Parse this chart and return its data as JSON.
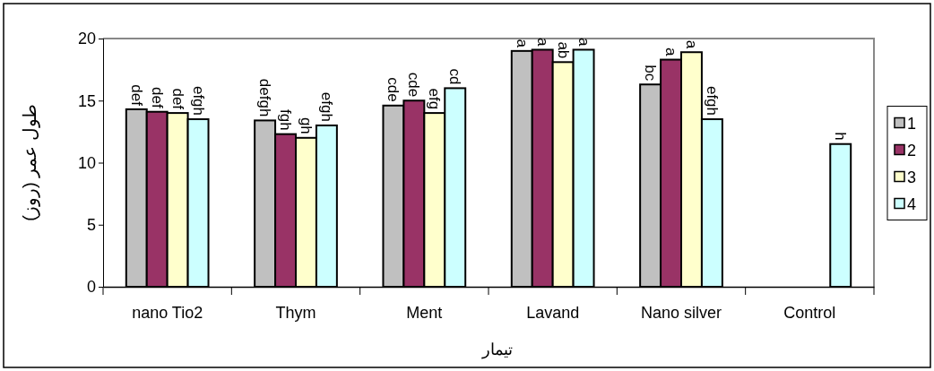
{
  "chart_data": {
    "type": "bar",
    "xlabel": "تيمار",
    "ylabel": "طول عمر (روز)",
    "categories": [
      "nano Tio2",
      "Thym",
      "Ment",
      "Lavand",
      "Nano silver",
      "Control"
    ],
    "series": [
      {
        "name": "1",
        "color": "#c0c0c0",
        "values": [
          14.3,
          13.4,
          14.6,
          19.0,
          16.3,
          null
        ],
        "value_labels": [
          "def",
          "defgh",
          "cde",
          "a",
          "bc",
          null
        ]
      },
      {
        "name": "2",
        "color": "#993366",
        "values": [
          14.1,
          12.3,
          15.0,
          19.1,
          18.3,
          null
        ],
        "value_labels": [
          "def",
          "fgh",
          "cde",
          "a",
          "a",
          null
        ]
      },
      {
        "name": "3",
        "color": "#ffffcc",
        "values": [
          14.0,
          12.0,
          14.0,
          18.1,
          18.9,
          null
        ],
        "value_labels": [
          "def",
          "gh",
          "efg",
          "ab",
          "a",
          null
        ]
      },
      {
        "name": "4",
        "color": "#ccffff",
        "values": [
          13.5,
          13.0,
          16.0,
          19.1,
          13.5,
          11.5
        ],
        "value_labels": [
          "efgh",
          "efgh",
          "cd",
          "a",
          "efgh",
          "h"
        ]
      }
    ],
    "ylim": [
      0,
      20
    ],
    "yticks": [
      0,
      5,
      10,
      15,
      20
    ],
    "grid": false,
    "legend": "right"
  }
}
